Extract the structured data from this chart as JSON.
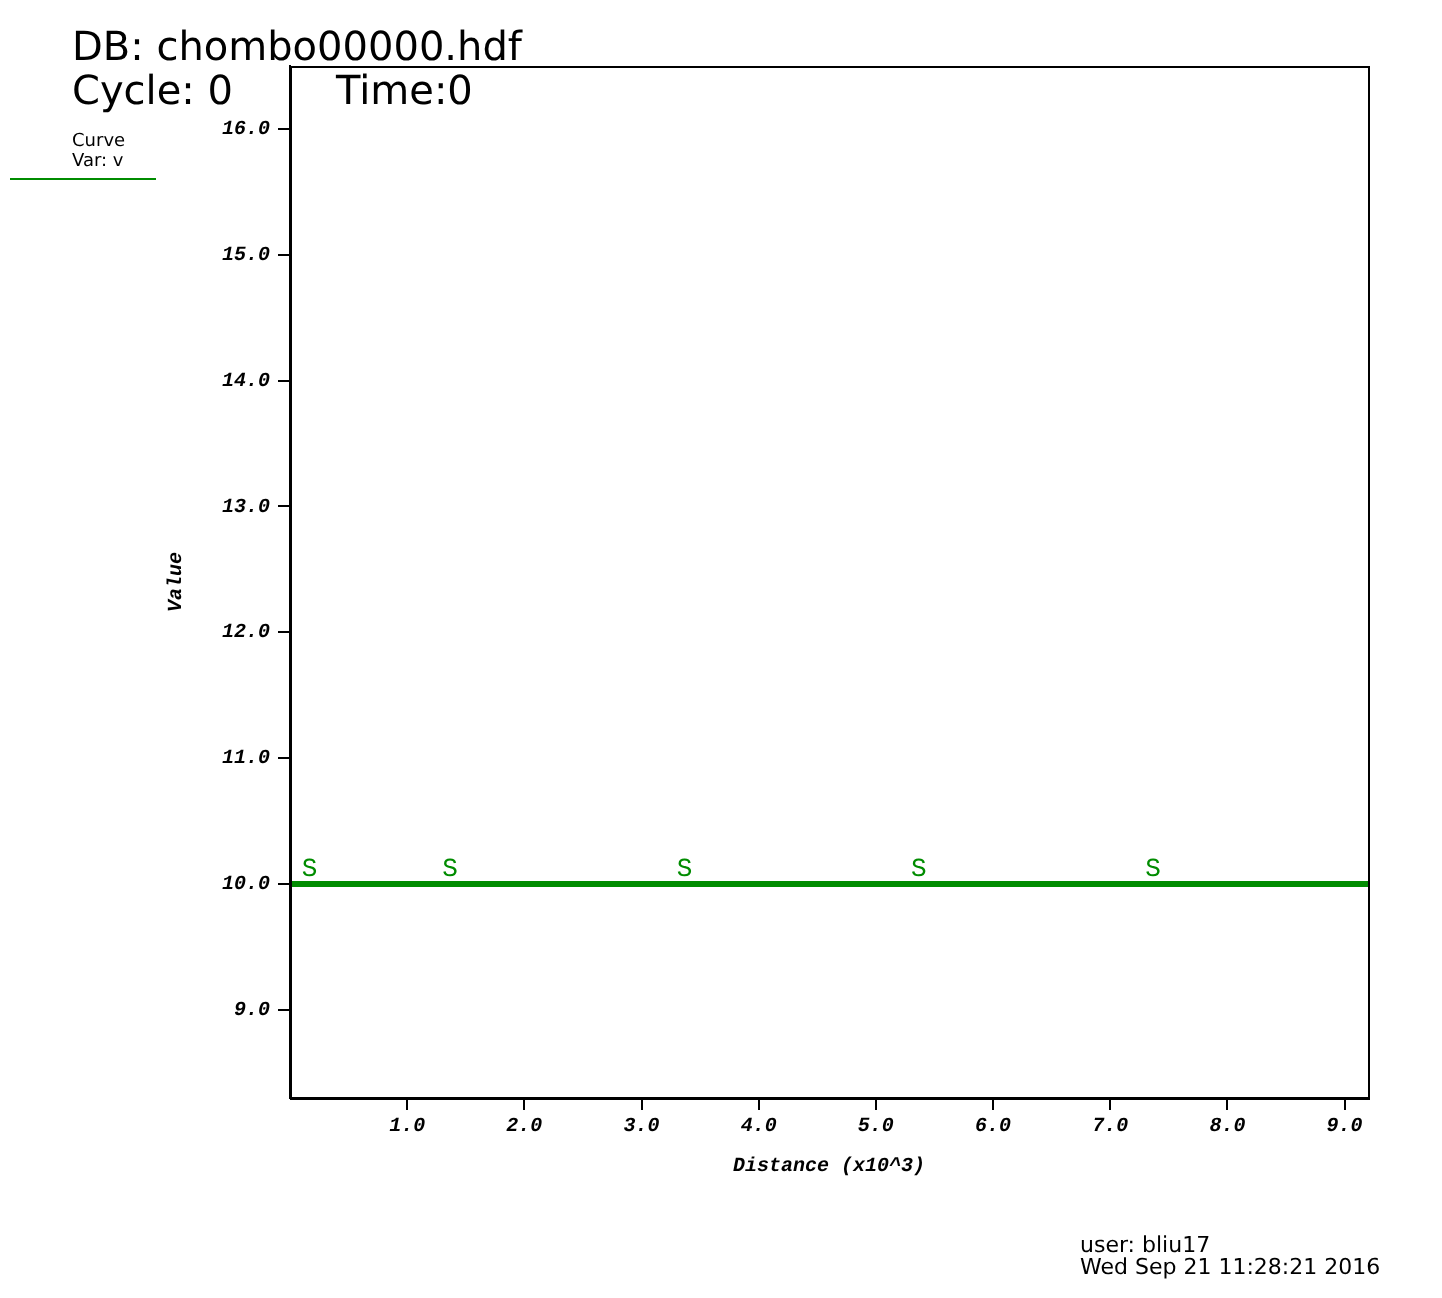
{
  "chart_data": {
    "type": "line",
    "title": "DB: chombo00000.hdf",
    "subtitle": "Cycle: 0",
    "xlabel": "Distance (x10^3)",
    "ylabel": "Value",
    "legend_title": "Curve",
    "legend": "top left",
    "x": [
      0,
      9.2
    ],
    "series": [
      {
        "name": "Var: v",
        "color": "#008c00",
        "values": [
          10,
          10
        ]
      }
    ],
    "xlim": [
      0,
      9.2
    ],
    "ylim": [
      8.3,
      16.5
    ],
    "xticks": [
      {
        "value": 1,
        "label": "1.0"
      },
      {
        "value": 2,
        "label": "2.0"
      },
      {
        "value": 3,
        "label": "3.0"
      },
      {
        "value": 4,
        "label": "4.0"
      },
      {
        "value": 5,
        "label": "5.0"
      },
      {
        "value": 6,
        "label": "6.0"
      },
      {
        "value": 7,
        "label": "7.0"
      },
      {
        "value": 8,
        "label": "8.0"
      },
      {
        "value": 9,
        "label": "9.0"
      }
    ],
    "yticks": [
      {
        "value": 9,
        "label": "9.0"
      },
      {
        "value": 10,
        "label": "10.0"
      },
      {
        "value": 11,
        "label": "11.0"
      },
      {
        "value": 12,
        "label": "12.0"
      },
      {
        "value": 13,
        "label": "13.0"
      },
      {
        "value": 14,
        "label": "14.0"
      },
      {
        "value": 15,
        "label": "15.0"
      },
      {
        "value": 16,
        "label": "16.0"
      }
    ],
    "grid": false,
    "marker": "none",
    "line_style": "solid",
    "annotations": [
      "Time:0",
      "user: bliu17",
      "Wed Sep 21 11:28:21 2016",
      {
        "text": "S",
        "x": 0.1,
        "y": 10
      },
      {
        "text": "S",
        "x": 1.3,
        "y": 10
      },
      {
        "text": "S",
        "x": 3.3,
        "y": 10
      },
      {
        "text": "S",
        "x": 5.3,
        "y": 10
      },
      {
        "text": "S",
        "x": 7.3,
        "y": 10
      }
    ]
  }
}
